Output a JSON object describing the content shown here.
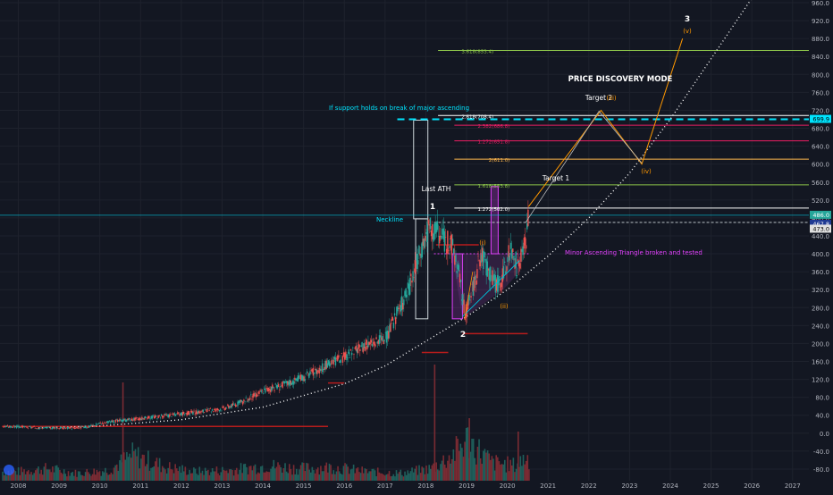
{
  "colors": {
    "background": "#131722",
    "candle_up": "#26a69a",
    "candle_down": "#ef5350",
    "axis_text": "#b2b5be",
    "cyan": "#00e5ff",
    "magenta": "#e040fb",
    "orange": "#ff9800",
    "white": "#ffffff",
    "fib_green": "#8bc34a",
    "fib_pink": "#e91e63",
    "fib_yellow": "#ffb74d"
  },
  "chart_data": {
    "type": "line",
    "title": "",
    "xlabel": "",
    "ylabel": "",
    "x_ticks": [
      "2008",
      "2009",
      "2010",
      "2011",
      "2012",
      "2013",
      "2014",
      "2015",
      "2016",
      "2017",
      "2018",
      "2019",
      "2020",
      "2021",
      "2022",
      "2023",
      "2024",
      "2025",
      "2026",
      "2027"
    ],
    "y_ticks": [
      "960.0",
      "920.0",
      "880.0",
      "840.0",
      "800.0",
      "760.0",
      "720.0",
      "680.0",
      "640.0",
      "600.0",
      "560.0",
      "520.0",
      "480.0",
      "440.0",
      "400.0",
      "360.0",
      "320.0",
      "280.0",
      "240.0",
      "200.0",
      "160.0",
      "120.0",
      "80.0",
      "40.0",
      "0.0",
      "-40.0",
      "-80.0"
    ],
    "xlim": [
      2007.55,
      2027.4
    ],
    "ylim": [
      -106,
      966
    ],
    "price_series": {
      "x": [
        2007.6,
        2008.0,
        2008.5,
        2009.0,
        2009.3,
        2009.7,
        2010.0,
        2010.5,
        2011.0,
        2011.5,
        2012.0,
        2012.5,
        2013.0,
        2013.5,
        2014.0,
        2014.5,
        2015.0,
        2015.5,
        2016.0,
        2016.5,
        2017.0,
        2017.3,
        2017.6,
        2017.9,
        2018.05,
        2018.2,
        2018.45,
        2018.65,
        2018.8,
        2018.95,
        2019.1,
        2019.35,
        2019.55,
        2019.7,
        2019.85,
        2020.0,
        2020.1,
        2020.25,
        2020.45,
        2020.52
      ],
      "values": [
        15,
        14,
        12,
        12,
        11,
        14,
        22,
        28,
        33,
        38,
        43,
        48,
        55,
        70,
        95,
        108,
        125,
        150,
        170,
        195,
        210,
        270,
        330,
        420,
        460,
        450,
        430,
        420,
        350,
        265,
        310,
        400,
        360,
        330,
        340,
        390,
        410,
        365,
        430,
        505
      ]
    },
    "volume": {
      "x": [
        2008.0,
        2008.7,
        2009.4,
        2010.2,
        2010.8,
        2011.6,
        2012.3,
        2013.2,
        2014.1,
        2014.9,
        2015.7,
        2016.5,
        2017.4,
        2018.1,
        2018.6,
        2019.0,
        2019.6,
        2020.2,
        2020.4
      ],
      "values": [
        12,
        16,
        10,
        14,
        34,
        18,
        12,
        14,
        20,
        16,
        18,
        12,
        10,
        16,
        32,
        54,
        24,
        20,
        30
      ]
    },
    "levels": [
      {
        "label": "3.618(853.4)",
        "value": 853.4
      },
      {
        "label": "2.618(708.4)",
        "value": 708.4
      },
      {
        "label": "2.382(686.8)",
        "value": 686.8
      },
      {
        "label": "1.272(651.8)",
        "value": 651.8
      },
      {
        "label": "2(611.0)",
        "value": 611.0
      },
      {
        "label": "1.618(553.8)",
        "value": 553.8
      },
      {
        "label": "1.272(502.0)",
        "value": 502.0
      }
    ],
    "projection_path": {
      "x": [
        2020.52,
        2022.3,
        2023.3,
        2024.3
      ],
      "values": [
        505,
        720,
        600,
        880
      ]
    },
    "parabolic_curve": {
      "x": [
        2008.5,
        2010,
        2012,
        2014,
        2016,
        2017,
        2018,
        2019,
        2020,
        2021,
        2022,
        2023,
        2024,
        2025,
        2026
      ],
      "values": [
        12,
        16,
        30,
        58,
        110,
        150,
        205,
        260,
        320,
        395,
        480,
        580,
        700,
        835,
        970
      ]
    },
    "price_labels": [
      "699.9",
      "486.0",
      "467.8",
      "473.0"
    ],
    "annotations": {
      "price_discovery": "PRICE DISCOVERY MODE",
      "support_holds": "If support holds on break of major ascending",
      "neckline": "Neckline",
      "last_ath": "Last ATH",
      "target1": "Target 1",
      "target2": "Target 2",
      "minor_triangle": "Minor Ascending Triangle broken and tested",
      "wave_1": "1",
      "wave_2": "2",
      "wave_3": "3",
      "wave_i": "(i)",
      "wave_ii": "(ii)",
      "wave_iii": "(iii)",
      "wave_iv": "(iv)",
      "wave_v": "(v)"
    }
  }
}
